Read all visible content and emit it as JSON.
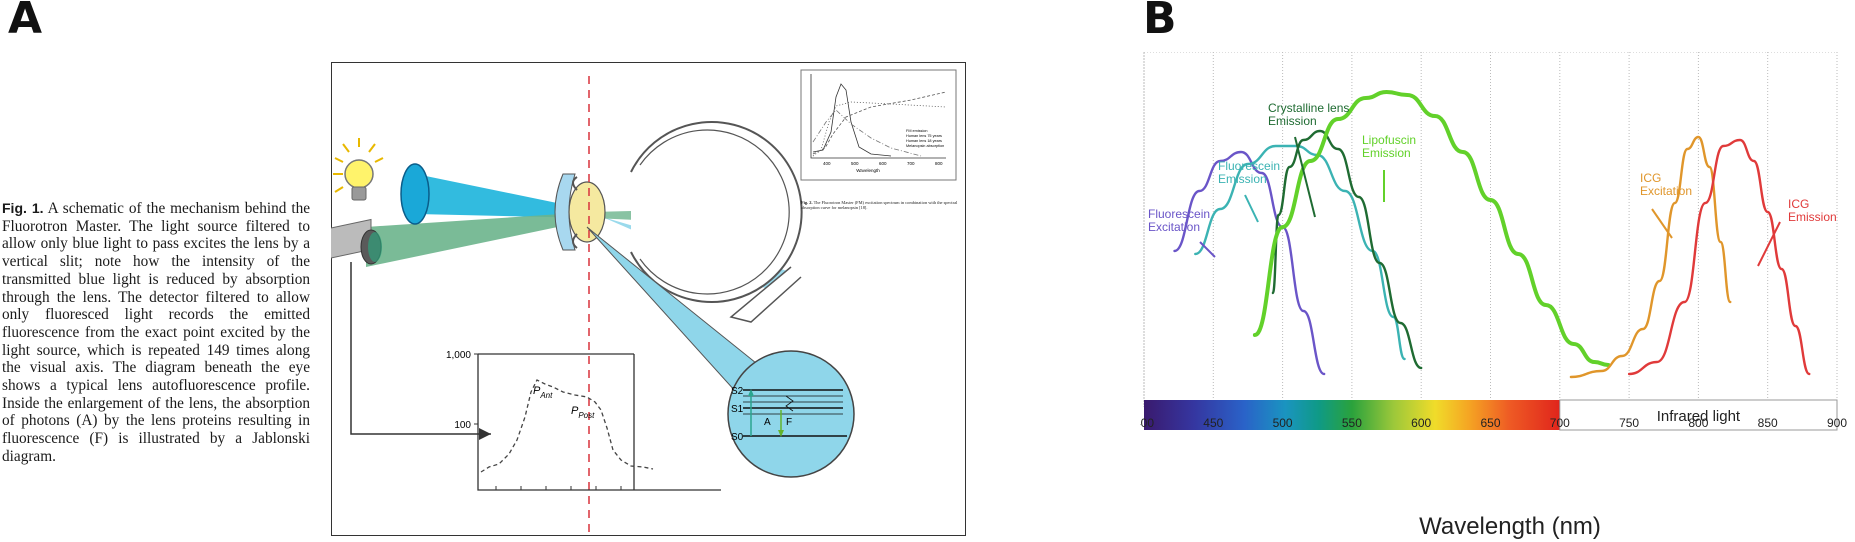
{
  "panel_a": {
    "letter": "A",
    "caption": {
      "bold": "Fig. 1.",
      "text": " A schematic of the mechanism behind the Fluorotron Master. The light source filtered to allow only blue light to pass excites the lens by a vertical slit; note how the intensity of the transmitted blue light is reduced by absorption through the lens. The detector filtered to allow only fluoresced light records the emitted fluorescence from the exact point excited by the light source, which is repeated 149 times along the visual axis. The diagram beneath the eye shows a typical lens autofluorescence profile. Inside the enlargement of the lens, the absorption of photons (A) by the lens proteins resulting in fluorescence (F) is illustrated by a Jablonski diagram."
    },
    "profile_plot": {
      "y_tick_top": "1,000",
      "y_tick_mid": "100",
      "peak_ant": "P",
      "peak_ant_sub": "Ant",
      "peak_post": "P",
      "peak_post_sub": "Post"
    },
    "jablonski": {
      "levels": [
        "S2",
        "S1",
        "S0"
      ],
      "absorption": "A",
      "fluorescence": "F"
    },
    "inset": {
      "xlabel": "Wavelength",
      "x_ticks": [
        "400",
        "500",
        "600",
        "700",
        "800"
      ],
      "legend": [
        "FM emission",
        "Human lens 75 years",
        "Human lens 18 years",
        "Melanopsin absorption"
      ],
      "caption_bold": "Fig. 2.",
      "caption": " The Fluorotron Master (FM) excitation spectrum in combination with the spectral absorption curve for melanopsin [18]."
    },
    "colors": {
      "blue_beam": "#1cb4dc",
      "green_beam": "#6cb48c",
      "lens": "#f5e9a0",
      "slit": "#d8323c"
    }
  },
  "panel_b": {
    "letter": "B",
    "chart_data": {
      "type": "line",
      "xlabel": "Wavelength (nm)",
      "ylabel": "",
      "xlim": [
        400,
        900
      ],
      "x_ticks": [
        "400",
        "450",
        "500",
        "550",
        "600",
        "650",
        "700",
        "750",
        "800",
        "850",
        "900"
      ],
      "grid": "vertical dotted",
      "spectrum_bar": {
        "visible_range": [
          400,
          700
        ],
        "infrared_label": "Infrared light"
      },
      "series": [
        {
          "name": "Fluorescein Excitation",
          "color": "#6a55c8",
          "label_lines": [
            "Fluorescein",
            "Excitation"
          ],
          "x": [
            422,
            440,
            455,
            470,
            485,
            500,
            515,
            530
          ],
          "y": [
            0.42,
            0.62,
            0.72,
            0.75,
            0.68,
            0.5,
            0.22,
            0.01
          ]
        },
        {
          "name": "Fluorescein Emission",
          "color": "#3bb3b3",
          "label_lines": [
            "Fluorescein",
            "Emission"
          ],
          "x": [
            437,
            455,
            475,
            495,
            510,
            525,
            545,
            565,
            580,
            588
          ],
          "y": [
            0.41,
            0.56,
            0.71,
            0.77,
            0.77,
            0.74,
            0.62,
            0.42,
            0.2,
            0.06
          ]
        },
        {
          "name": "Crystalline lens Emission",
          "color": "#1f6b32",
          "label_lines": [
            "Crystalline lens",
            "Emission"
          ],
          "x": [
            493,
            497,
            505,
            515,
            527,
            540,
            555,
            570,
            585,
            600
          ],
          "y": [
            0.28,
            0.54,
            0.7,
            0.79,
            0.82,
            0.76,
            0.6,
            0.38,
            0.18,
            0.03
          ]
        },
        {
          "name": "Lipofuscin Emission",
          "color": "#62d12a",
          "label_lines": [
            "Lipofuscin",
            "Emission"
          ],
          "x": [
            480,
            500,
            520,
            540,
            560,
            575,
            590,
            610,
            630,
            650,
            670,
            690,
            710,
            725,
            735
          ],
          "y": [
            0.14,
            0.5,
            0.72,
            0.86,
            0.93,
            0.95,
            0.94,
            0.87,
            0.75,
            0.59,
            0.41,
            0.24,
            0.11,
            0.05,
            0.04
          ]
        },
        {
          "name": "ICG Excitation",
          "color": "#e0962b",
          "label_lines": [
            "ICG",
            "Excitation"
          ],
          "x": [
            708,
            730,
            745,
            760,
            772,
            783,
            792,
            800,
            808,
            816,
            823
          ],
          "y": [
            0.0,
            0.02,
            0.07,
            0.16,
            0.32,
            0.58,
            0.76,
            0.8,
            0.7,
            0.45,
            0.25
          ]
        },
        {
          "name": "ICG Emission",
          "color": "#e03a3a",
          "label_lines": [
            "ICG",
            "Emission"
          ],
          "x": [
            750,
            770,
            790,
            805,
            818,
            830,
            840,
            850,
            860,
            870,
            880
          ],
          "y": [
            0.01,
            0.05,
            0.25,
            0.58,
            0.77,
            0.79,
            0.72,
            0.55,
            0.36,
            0.17,
            0.01
          ]
        }
      ]
    }
  }
}
